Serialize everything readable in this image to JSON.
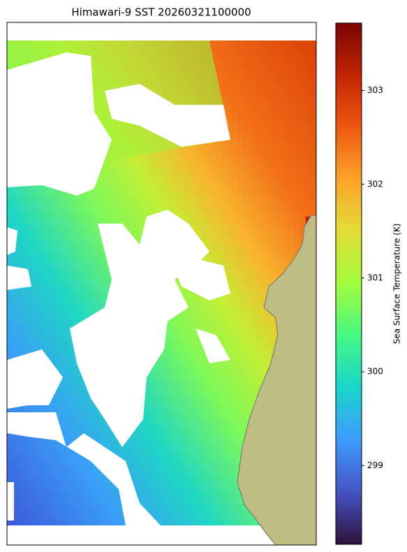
{
  "chart_data": {
    "type": "map",
    "title": "Himawari-9 SST 20260321100000",
    "colorbar": {
      "label": "Sea Surface Temperature (K)",
      "lim": [
        298.16,
        303.72
      ],
      "ticks": [
        299,
        300,
        301,
        302,
        303
      ],
      "colors": [
        "#30123b",
        "#4454c4",
        "#3e9bfe",
        "#18d6cb",
        "#46f884",
        "#a2fc3c",
        "#e1dd37",
        "#fda329",
        "#ef5911",
        "#c22402",
        "#7a0403"
      ]
    }
  }
}
